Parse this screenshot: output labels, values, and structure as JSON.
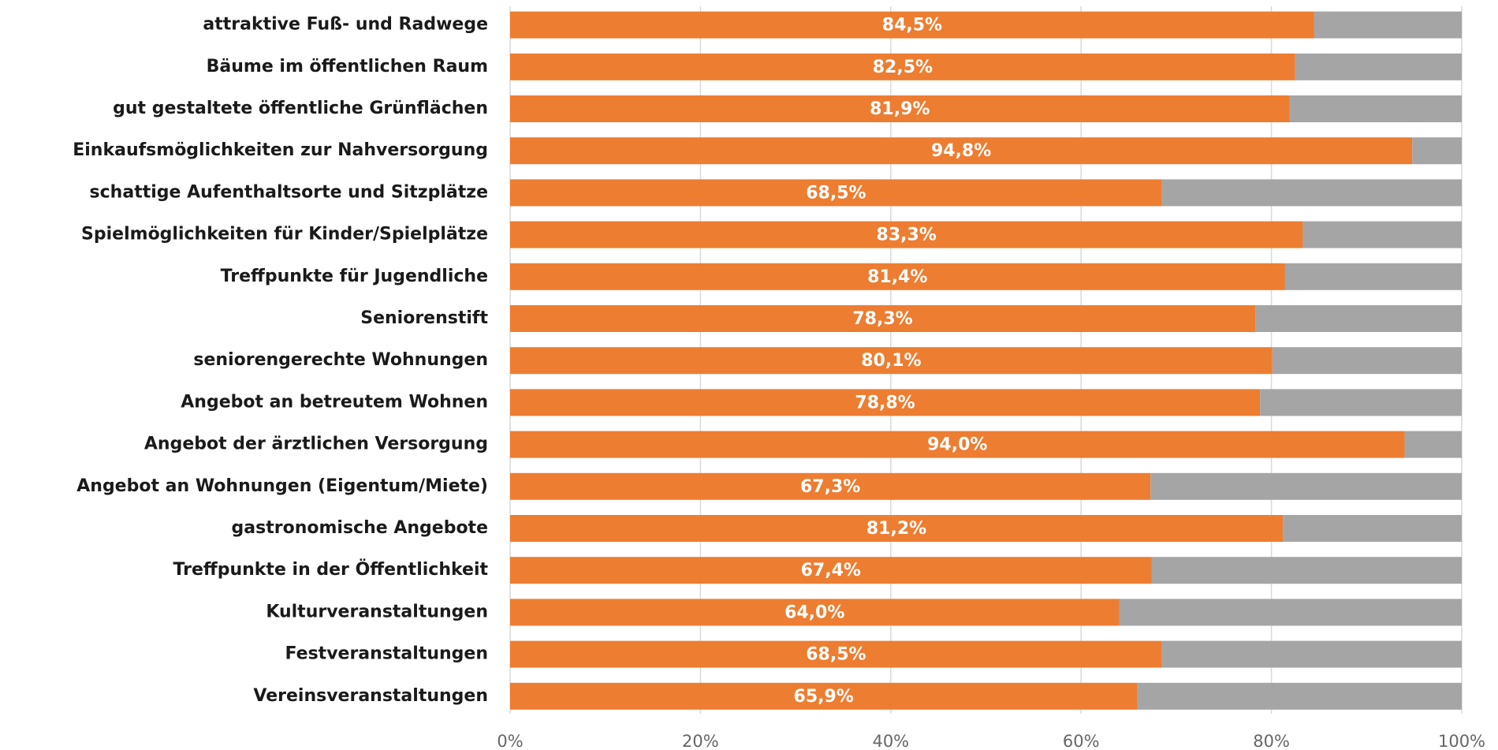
{
  "chart_data": {
    "type": "stacked-bar-horizontal",
    "categories": [
      "attraktive Fuß- und Radwege",
      "Bäume im öffentlichen Raum",
      "gut gestaltete öffentliche Grünflächen",
      "Einkaufsmöglichkeiten zur Nahversorgung",
      "schattige Aufenthaltsorte und Sitzplätze",
      "Spielmöglichkeiten für Kinder/Spielplätze",
      "Treffpunkte für Jugendliche",
      "Seniorenstift",
      "seniorengerechte Wohnungen",
      "Angebot an betreutem Wohnen",
      "Angebot der ärztlichen Versorgung",
      "Angebot an Wohnungen (Eigentum/Miete)",
      "gastronomische Angebote",
      "Treffpunkte in der Öffentlichkeit",
      "Kulturveranstaltungen",
      "Festveranstaltungen",
      "Vereinsveranstaltungen"
    ],
    "series": [
      {
        "color": "#ed7d31",
        "values": [
          84.5,
          82.5,
          81.9,
          94.8,
          68.5,
          83.3,
          81.4,
          78.3,
          80.1,
          78.8,
          94.0,
          67.3,
          81.2,
          67.4,
          64.0,
          68.5,
          65.9
        ],
        "value_labels": [
          "84,5%",
          "82,5%",
          "81,9%",
          "94,8%",
          "68,5%",
          "83,3%",
          "81,4%",
          "78,3%",
          "80,1%",
          "78,8%",
          "94,0%",
          "67,3%",
          "81,2%",
          "67,4%",
          "64,0%",
          "68,5%",
          "65,9%"
        ]
      },
      {
        "color": "#a5a5a5",
        "values": [
          15.5,
          17.5,
          18.1,
          5.2,
          31.5,
          16.7,
          18.6,
          21.7,
          19.9,
          21.2,
          6.0,
          32.7,
          18.8,
          32.6,
          36.0,
          31.5,
          34.1
        ]
      }
    ],
    "xlim": [
      0,
      100
    ],
    "xticks": [
      {
        "value": 0,
        "label": "0%"
      },
      {
        "value": 20,
        "label": "20%"
      },
      {
        "value": 40,
        "label": "40%"
      },
      {
        "value": 60,
        "label": "60%"
      },
      {
        "value": 80,
        "label": "80%"
      },
      {
        "value": 100,
        "label": "100%"
      }
    ],
    "grid": true
  }
}
